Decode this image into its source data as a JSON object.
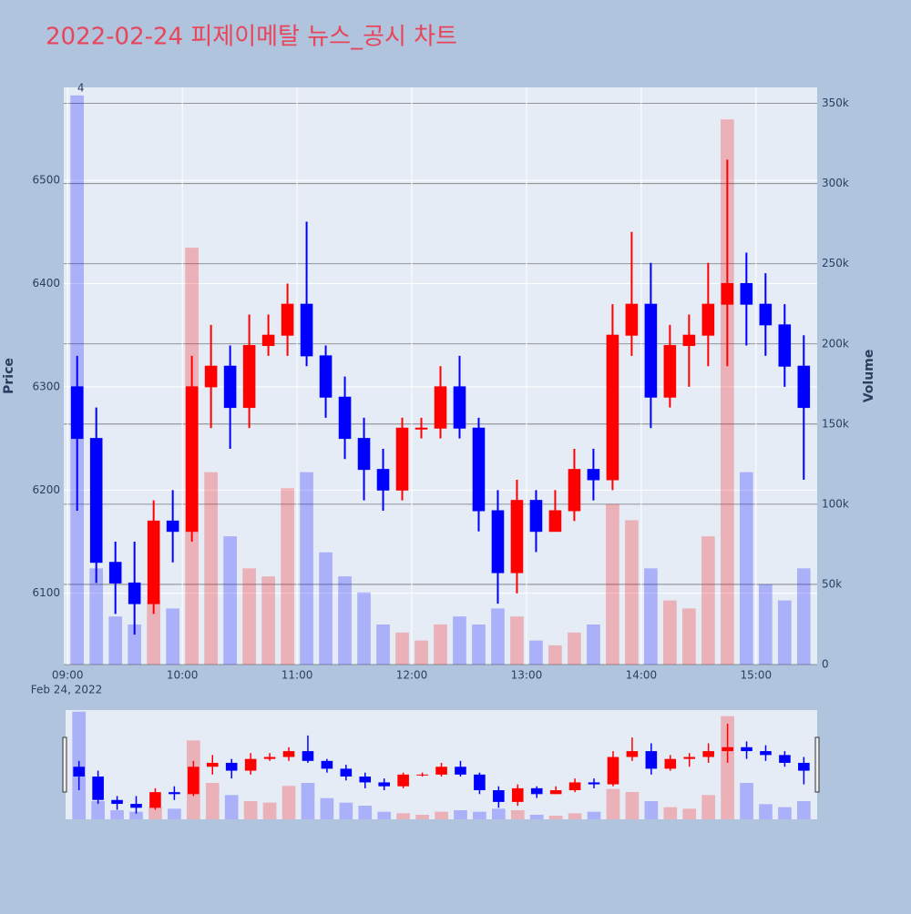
{
  "chart_data": {
    "type": "candlestick",
    "title": "2022-02-24 피제이메탈 뉴스_공시 차트",
    "x": [
      "09:00",
      "09:10",
      "09:20",
      "09:30",
      "09:40",
      "09:50",
      "10:00",
      "10:10",
      "10:20",
      "10:30",
      "10:40",
      "10:50",
      "11:00",
      "11:10",
      "11:20",
      "11:30",
      "11:40",
      "11:50",
      "12:00",
      "12:10",
      "12:20",
      "12:30",
      "12:40",
      "12:50",
      "13:00",
      "13:10",
      "13:20",
      "13:30",
      "13:40",
      "13:50",
      "14:00",
      "14:10",
      "14:20",
      "14:30",
      "14:40",
      "14:50",
      "15:00",
      "15:10",
      "15:20"
    ],
    "open": [
      6300,
      6250,
      6130,
      6110,
      6090,
      6170,
      6160,
      6300,
      6320,
      6280,
      6340,
      6350,
      6380,
      6330,
      6290,
      6250,
      6220,
      6200,
      6260,
      6260,
      6300,
      6260,
      6180,
      6120,
      6190,
      6160,
      6180,
      6220,
      6210,
      6350,
      6380,
      6290,
      6340,
      6350,
      6380,
      6400,
      6380,
      6360,
      6320
    ],
    "high": [
      6330,
      6280,
      6150,
      6150,
      6190,
      6200,
      6330,
      6360,
      6340,
      6370,
      6370,
      6400,
      6460,
      6340,
      6310,
      6270,
      6240,
      6270,
      6270,
      6320,
      6330,
      6270,
      6200,
      6210,
      6200,
      6200,
      6240,
      6240,
      6380,
      6450,
      6420,
      6360,
      6370,
      6420,
      6520,
      6430,
      6410,
      6380,
      6350
    ],
    "low": [
      6180,
      6110,
      6080,
      6060,
      6080,
      6130,
      6150,
      6260,
      6240,
      6260,
      6330,
      6330,
      6320,
      6270,
      6230,
      6190,
      6180,
      6190,
      6250,
      6250,
      6250,
      6160,
      6090,
      6100,
      6140,
      6160,
      6170,
      6190,
      6200,
      6330,
      6260,
      6280,
      6300,
      6320,
      6320,
      6340,
      6330,
      6300,
      6210
    ],
    "close": [
      6250,
      6130,
      6110,
      6090,
      6170,
      6160,
      6300,
      6320,
      6280,
      6340,
      6350,
      6380,
      6330,
      6290,
      6250,
      6220,
      6200,
      6260,
      6260,
      6300,
      6260,
      6180,
      6120,
      6190,
      6160,
      6180,
      6220,
      6210,
      6350,
      6380,
      6290,
      6340,
      6350,
      6380,
      6400,
      6380,
      6360,
      6320,
      6280
    ],
    "volume": [
      355000,
      60000,
      30000,
      25000,
      40000,
      35000,
      260000,
      120000,
      80000,
      60000,
      55000,
      110000,
      120000,
      70000,
      55000,
      45000,
      25000,
      20000,
      15000,
      25000,
      30000,
      25000,
      35000,
      30000,
      15000,
      12000,
      20000,
      25000,
      100000,
      90000,
      60000,
      40000,
      35000,
      80000,
      340000,
      120000,
      50000,
      40000,
      60000
    ],
    "up_color": "#ff0000",
    "down_color": "#0000ff",
    "xlim": [
      "08:58",
      "15:32"
    ],
    "xticks": [
      "09:00",
      "10:00",
      "11:00",
      "12:00",
      "13:00",
      "14:00",
      "15:00"
    ],
    "x_date_label": "Feb 24, 2022",
    "ylim": [
      6031,
      6590
    ],
    "yticks": [
      6100,
      6200,
      6300,
      6400,
      6500
    ],
    "ylabel": "Price",
    "y2lim": [
      0,
      360000
    ],
    "y2ticks": [
      0,
      {
        "value": 50000,
        "label": "50k"
      },
      {
        "value": 100000,
        "label": "100k"
      },
      {
        "value": 150000,
        "label": "150k"
      },
      {
        "value": 200000,
        "label": "200k"
      },
      {
        "value": 250000,
        "label": "250k"
      },
      {
        "value": 300000,
        "label": "300k"
      },
      {
        "value": 350000,
        "label": "350k"
      }
    ],
    "y2label": "Volume",
    "annotation": "4",
    "grid": true
  }
}
